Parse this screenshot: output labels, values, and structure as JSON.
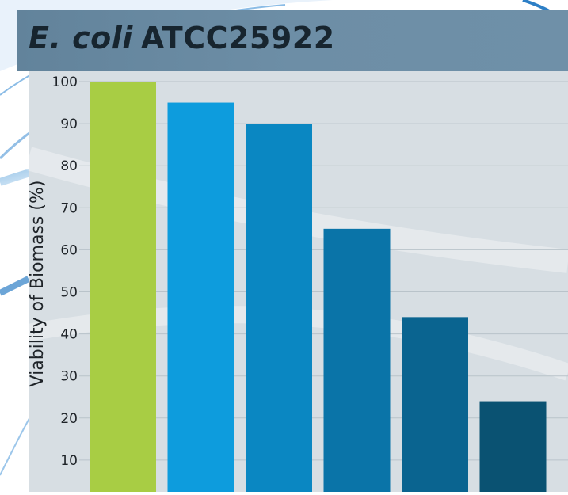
{
  "title": {
    "italic_part": "E. coli",
    "rest": "ATCC25922"
  },
  "chart_data": {
    "type": "bar",
    "title": "E. coli ATCC25922",
    "ylabel": "Viability of Biomass (%)",
    "xlabel": "",
    "ylim": [
      0,
      100
    ],
    "yticks": [
      10,
      20,
      30,
      40,
      50,
      60,
      70,
      80,
      90,
      100
    ],
    "grid": true,
    "values": [
      100,
      95,
      90,
      65,
      44,
      24
    ],
    "colors": [
      "#a8cd44",
      "#0d9cdd",
      "#0a87c2",
      "#0a74a8",
      "#0a6490",
      "#0a5272"
    ]
  },
  "colors": {
    "title_bar": "#6a8ba3",
    "title_text": "#17252f",
    "plot_background": "#d7dee3",
    "gridline": "#b9c3ca",
    "tick_text": "#1e2328"
  }
}
